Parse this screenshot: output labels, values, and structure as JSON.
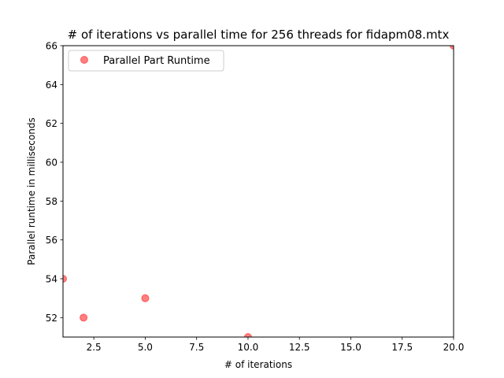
{
  "chart_data": {
    "type": "scatter",
    "title": "# of iterations vs parallel time for 256 threads for fidapm08.mtx",
    "xlabel": "# of iterations",
    "ylabel": "Parallel runtime in milliseconds",
    "xlim": [
      1,
      20
    ],
    "ylim": [
      51,
      66
    ],
    "xticks": [
      "2.5",
      "5.0",
      "7.5",
      "10.0",
      "12.5",
      "15.0",
      "17.5",
      "20.0"
    ],
    "xtick_values": [
      2.5,
      5,
      7.5,
      10,
      12.5,
      15,
      17.5,
      20
    ],
    "yticks": [
      "52",
      "54",
      "56",
      "58",
      "60",
      "62",
      "64",
      "66"
    ],
    "ytick_values": [
      52,
      54,
      56,
      58,
      60,
      62,
      64,
      66
    ],
    "legend_position": "upper-left",
    "series": [
      {
        "name": "Parallel Part Runtime",
        "color": "#ff0000",
        "marker": "circle",
        "opacity": 0.5,
        "x": [
          1,
          2,
          5,
          10,
          20
        ],
        "y": [
          54,
          52,
          53,
          51,
          66
        ]
      }
    ]
  }
}
